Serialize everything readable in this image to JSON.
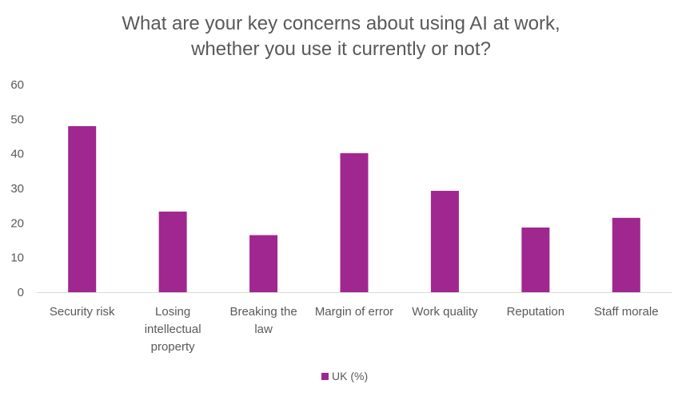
{
  "chart_data": {
    "type": "bar",
    "title": "What are your key concerns about using AI at work, whether you use it currently or not?",
    "title_lines": [
      "What are your key concerns about using AI at work,",
      "whether you use it currently or not?"
    ],
    "categories": [
      "Security risk",
      "Losing intellectual property",
      "Breaking the law",
      "Margin of error",
      "Work quality",
      "Reputation",
      "Staff morale"
    ],
    "category_lines": [
      [
        "Security risk"
      ],
      [
        "Losing",
        "intellectual",
        "property"
      ],
      [
        "Breaking the",
        "law"
      ],
      [
        "Margin of error"
      ],
      [
        "Work quality"
      ],
      [
        "Reputation"
      ],
      [
        "Staff morale"
      ]
    ],
    "series": [
      {
        "name": "UK (%)",
        "values": [
          48,
          23.3,
          16.5,
          40.2,
          29.3,
          18.7,
          21.5
        ],
        "color": "#A0278F"
      }
    ],
    "ylim": [
      0,
      60
    ],
    "yticks": [
      0,
      10,
      20,
      30,
      40,
      50,
      60
    ],
    "xlabel": "",
    "ylabel": "",
    "grid": false,
    "legend_position": "bottom"
  }
}
